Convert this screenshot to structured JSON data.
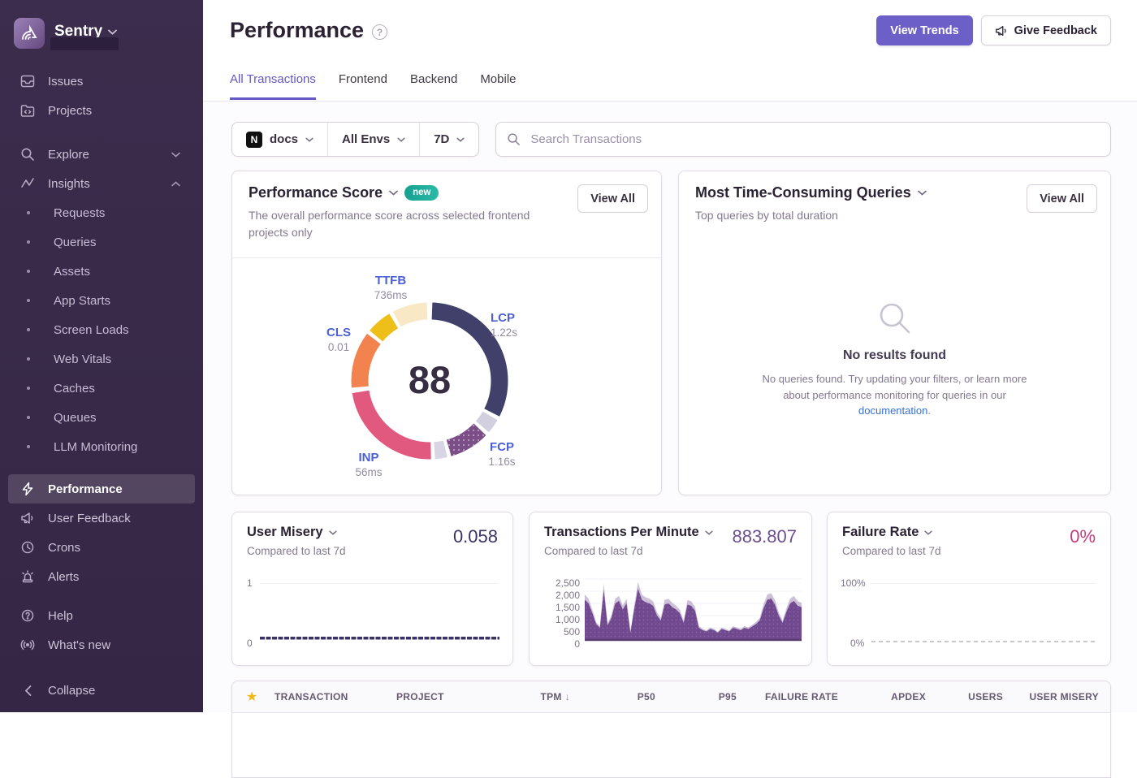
{
  "brand": {
    "name": "Sentry"
  },
  "icons": {
    "help_glyph": "?",
    "star": "★",
    "sort_down": "↓",
    "platform_letter": "N"
  },
  "colors": {
    "accent": "#6358c5",
    "button_primary": "#6c5fc7",
    "sidebar_bg": "#3a2b49",
    "value_navy": "#3b3366",
    "value_purple": "#6d4f90",
    "value_pink": "#c33d7b",
    "vital_label_blue": "#4b5fd6",
    "badge_teal": "#1da796",
    "star_gold": "#f2b712"
  },
  "sidebar": {
    "primary": [
      {
        "label": "Issues"
      },
      {
        "label": "Projects"
      }
    ],
    "explore": {
      "label": "Explore"
    },
    "insights": {
      "label": "Insights",
      "children": [
        "Requests",
        "Queries",
        "Assets",
        "App Starts",
        "Screen Loads",
        "Web Vitals",
        "Caches",
        "Queues",
        "LLM Monitoring"
      ]
    },
    "secondary": [
      {
        "label": "Performance",
        "active": true
      },
      {
        "label": "User Feedback"
      },
      {
        "label": "Crons"
      },
      {
        "label": "Alerts"
      }
    ],
    "tertiary": [
      {
        "label": "Help"
      },
      {
        "label": "What's new"
      }
    ],
    "collapse_label": "Collapse"
  },
  "header": {
    "title": "Performance",
    "view_trends_label": "View Trends",
    "give_feedback_label": "Give Feedback"
  },
  "tabs": [
    {
      "label": "All Transactions",
      "active": true
    },
    {
      "label": "Frontend",
      "active": false
    },
    {
      "label": "Backend",
      "active": false
    },
    {
      "label": "Mobile",
      "active": false
    }
  ],
  "filters": {
    "project": "docs",
    "environment": "All Envs",
    "period": "7D",
    "search_placeholder": "Search Transactions"
  },
  "cards": {
    "performance_score": {
      "title": "Performance Score",
      "badge": "new",
      "view_all_label": "View All",
      "description": "The overall performance score across selected frontend projects only",
      "score": "88"
    },
    "queries": {
      "title": "Most Time-Consuming Queries",
      "subtitle": "Top queries by total duration",
      "view_all_label": "View All",
      "empty_title": "No results found",
      "empty_text_before": "No queries found. Try updating your filters, or learn more about performance monitoring for queries in our ",
      "empty_link": "documentation",
      "empty_text_after": "."
    },
    "user_misery": {
      "title": "User Misery",
      "value": "0.058",
      "subtitle": "Compared to last 7d",
      "y_max": "1",
      "y_min": "0"
    },
    "tpm": {
      "title": "Transactions Per Minute",
      "value": "883.807",
      "subtitle": "Compared to last 7d"
    },
    "failure_rate": {
      "title": "Failure Rate",
      "value": "0%",
      "subtitle": "Compared to last 7d",
      "y_max": "100%",
      "y_min": "0%"
    }
  },
  "table": {
    "columns": [
      "TRANSACTION",
      "PROJECT",
      "TPM",
      "P50",
      "P95",
      "FAILURE RATE",
      "APDEX",
      "USERS",
      "USER MISERY"
    ],
    "sorted_column": "TPM"
  },
  "chart_data": [
    {
      "id": "web-vitals-ring",
      "type": "donut",
      "title": "Performance Score",
      "center_value": 88,
      "vitals": [
        {
          "name": "TTFB",
          "value": "736ms"
        },
        {
          "name": "LCP",
          "value": "1.22s"
        },
        {
          "name": "FCP",
          "value": "1.16s"
        },
        {
          "name": "INP",
          "value": "56ms"
        },
        {
          "name": "CLS",
          "value": "0.01"
        }
      ],
      "segments": [
        {
          "label": "LCP",
          "color": "#41406b",
          "start": 2,
          "end": 117,
          "dotted": false
        },
        {
          "label": "LCP-unscored",
          "color": "#d2cfdf",
          "start": 120,
          "end": 131,
          "dotted": false
        },
        {
          "label": "FCP",
          "color": "#7c4e87",
          "start": 134,
          "end": 164,
          "dotted": true
        },
        {
          "label": "FCP-unscored",
          "color": "#d8d5e4",
          "start": 167,
          "end": 176,
          "dotted": false
        },
        {
          "label": "INP",
          "color": "#e2597f",
          "start": 179,
          "end": 261,
          "dotted": false
        },
        {
          "label": "CLS",
          "color": "#f2834f",
          "start": 265,
          "end": 307,
          "dotted": false
        },
        {
          "label": "TTFB",
          "color": "#eebe19",
          "start": 310,
          "end": 329,
          "dotted": false
        },
        {
          "label": "TTFB-unscored",
          "color": "#f8e8c5",
          "start": 332,
          "end": 358,
          "dotted": false
        }
      ]
    },
    {
      "id": "tpm-area",
      "type": "area",
      "title": "Transactions Per Minute",
      "current": 883.807,
      "ylim": [
        0,
        2500
      ],
      "y_ticks": [
        "2,500",
        "2,000",
        "1,500",
        "1,000",
        "500",
        "0"
      ],
      "values": [
        1650,
        1500,
        1100,
        650,
        500,
        2050,
        600,
        900,
        1500,
        1600,
        1250,
        1500,
        300,
        1250,
        2100,
        1650,
        1550,
        1500,
        1400,
        1000,
        800,
        1450,
        1500,
        1350,
        1250,
        1100,
        700,
        1450,
        1400,
        1200,
        500,
        400,
        350,
        450,
        400,
        300,
        450,
        400,
        350,
        500,
        450,
        400,
        500,
        450,
        550,
        650,
        800,
        1300,
        1650,
        1700,
        1450,
        1000,
        700,
        1150,
        1500,
        1600,
        1400,
        1350
      ]
    },
    {
      "id": "user-misery-line",
      "type": "line",
      "title": "User Misery",
      "current": 0.058,
      "ylim": [
        0,
        1
      ]
    },
    {
      "id": "failure-rate-line",
      "type": "line",
      "title": "Failure Rate",
      "current": 0,
      "ylim": [
        0,
        100
      ]
    }
  ]
}
